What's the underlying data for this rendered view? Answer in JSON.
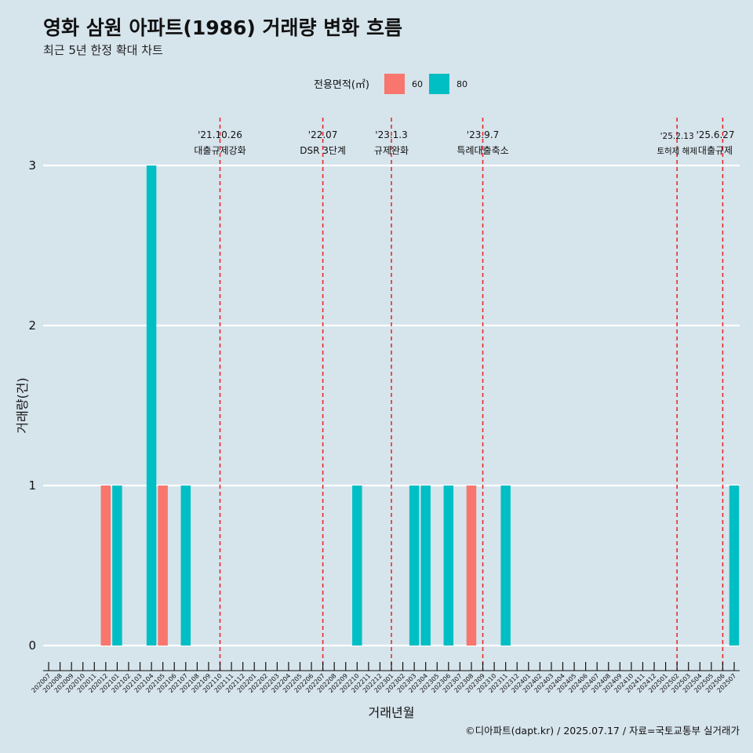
{
  "chart_data": {
    "type": "bar",
    "title": "영화 삼원 아파트(1986) 거래량 변화 흐름",
    "subtitle": "최근 5년 한정 확대 차트",
    "xlabel": "거래년월",
    "ylabel": "거래량(건)",
    "ylim": [
      0,
      3
    ],
    "yticks": [
      "0",
      "1",
      "2",
      "3"
    ],
    "grid": true,
    "legend": {
      "title": "전용면적(㎡)",
      "position": "top",
      "entries": [
        "60",
        "80"
      ]
    },
    "colors": {
      "60": "#f8766d",
      "80": "#00bfc4",
      "background": "#d6e4ec",
      "vline": "#e8201e"
    },
    "categories": [
      "202007",
      "202008",
      "202009",
      "202010",
      "202011",
      "202012",
      "202101",
      "202102",
      "202103",
      "202104",
      "202105",
      "202106",
      "202107",
      "202108",
      "202109",
      "202110",
      "202111",
      "202112",
      "202201",
      "202202",
      "202203",
      "202204",
      "202205",
      "202206",
      "202207",
      "202208",
      "202209",
      "202210",
      "202211",
      "202212",
      "202301",
      "202302",
      "202303",
      "202304",
      "202305",
      "202306",
      "202307",
      "202308",
      "202309",
      "202310",
      "202311",
      "202312",
      "202401",
      "202402",
      "202403",
      "202404",
      "202405",
      "202406",
      "202407",
      "202408",
      "202409",
      "202410",
      "202411",
      "202412",
      "202501",
      "202502",
      "202503",
      "202504",
      "202505",
      "202506",
      "202507"
    ],
    "series": [
      {
        "name": "60",
        "values": [
          0,
          0,
          0,
          0,
          0,
          1,
          0,
          0,
          0,
          0,
          1,
          0,
          0,
          0,
          0,
          0,
          0,
          0,
          0,
          0,
          0,
          0,
          0,
          0,
          0,
          0,
          0,
          0,
          0,
          0,
          0,
          0,
          0,
          0,
          0,
          0,
          0,
          1,
          0,
          0,
          0,
          0,
          0,
          0,
          0,
          0,
          0,
          0,
          0,
          0,
          0,
          0,
          0,
          0,
          0,
          0,
          0,
          0,
          0,
          0,
          0
        ]
      },
      {
        "name": "80",
        "values": [
          0,
          0,
          0,
          0,
          0,
          0,
          1,
          0,
          0,
          3,
          0,
          0,
          1,
          0,
          0,
          0,
          0,
          0,
          0,
          0,
          0,
          0,
          0,
          0,
          0,
          0,
          0,
          1,
          0,
          0,
          0,
          0,
          1,
          1,
          0,
          1,
          0,
          0,
          0,
          0,
          1,
          0,
          0,
          0,
          0,
          0,
          0,
          0,
          0,
          0,
          0,
          0,
          0,
          0,
          0,
          0,
          0,
          0,
          0,
          0,
          1
        ]
      }
    ],
    "annotations": [
      {
        "x": "202110",
        "date": "'21.10.26",
        "label": "대출규제강화",
        "small": false
      },
      {
        "x": "202207",
        "date": "'22.07",
        "label": "DSR 3단계",
        "small": false
      },
      {
        "x": "202301",
        "date": "'23.1.3",
        "label": "규제완화",
        "small": false
      },
      {
        "x": "202309",
        "date": "'23.9.7",
        "label": "특례대출축소",
        "small": false
      },
      {
        "x": "202502",
        "date": "'25.2.13",
        "label": "토허제 해제",
        "small": true
      },
      {
        "x": "202506",
        "date": "'25.6.27",
        "label": "대출규제",
        "small": false
      }
    ],
    "caption": "©디아파트(dapt.kr) / 2025.07.17 / 자료=국토교통부 실거래가"
  }
}
